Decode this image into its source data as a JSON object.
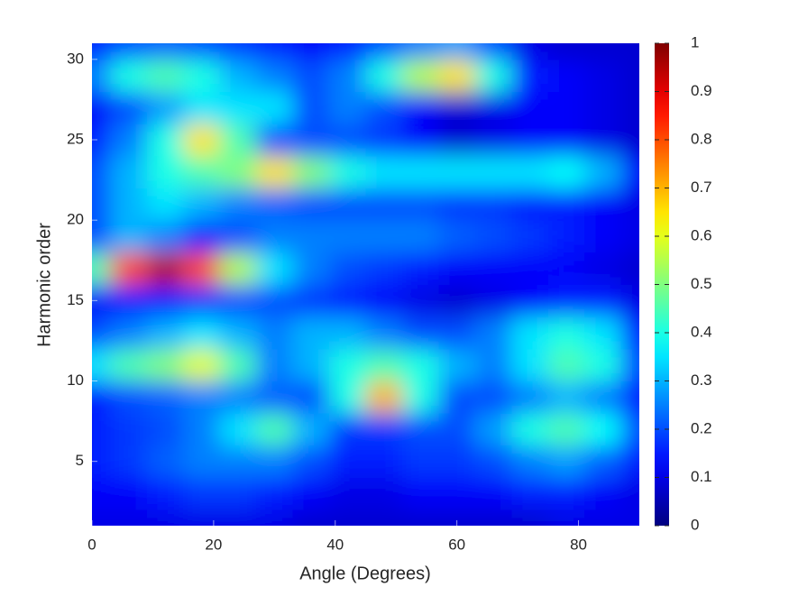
{
  "chart_data": {
    "type": "heatmap",
    "xlabel": "Angle (Degrees)",
    "ylabel": "Harmonic order",
    "colormap": "jet",
    "x": [
      0,
      6,
      12,
      18,
      24,
      30,
      36,
      42,
      48,
      54,
      60,
      66,
      72,
      78,
      84,
      90
    ],
    "y": [
      1,
      3,
      5,
      7,
      9,
      11,
      13,
      15,
      17,
      19,
      21,
      23,
      25,
      27,
      29,
      31
    ],
    "z": [
      [
        0.1,
        0.1,
        0.1,
        0.1,
        0.1,
        0.1,
        0.08,
        0.08,
        0.08,
        0.08,
        0.08,
        0.08,
        0.08,
        0.1,
        0.1,
        0.1
      ],
      [
        0.12,
        0.12,
        0.15,
        0.18,
        0.18,
        0.15,
        0.12,
        0.1,
        0.1,
        0.12,
        0.12,
        0.12,
        0.15,
        0.15,
        0.12,
        0.1
      ],
      [
        0.15,
        0.18,
        0.22,
        0.25,
        0.25,
        0.25,
        0.2,
        0.15,
        0.15,
        0.18,
        0.18,
        0.2,
        0.25,
        0.28,
        0.22,
        0.15
      ],
      [
        0.15,
        0.18,
        0.2,
        0.25,
        0.35,
        0.45,
        0.3,
        0.18,
        0.18,
        0.2,
        0.2,
        0.28,
        0.4,
        0.45,
        0.38,
        0.2
      ],
      [
        0.15,
        0.2,
        0.22,
        0.25,
        0.25,
        0.22,
        0.2,
        0.4,
        0.7,
        0.4,
        0.2,
        0.2,
        0.25,
        0.3,
        0.25,
        0.15
      ],
      [
        0.35,
        0.45,
        0.5,
        0.6,
        0.45,
        0.25,
        0.3,
        0.4,
        0.45,
        0.4,
        0.3,
        0.25,
        0.35,
        0.45,
        0.4,
        0.2
      ],
      [
        0.2,
        0.25,
        0.3,
        0.35,
        0.3,
        0.25,
        0.3,
        0.3,
        0.25,
        0.2,
        0.2,
        0.25,
        0.35,
        0.4,
        0.35,
        0.15
      ],
      [
        0.12,
        0.15,
        0.15,
        0.18,
        0.2,
        0.2,
        0.18,
        0.15,
        0.12,
        0.1,
        0.08,
        0.1,
        0.12,
        0.15,
        0.15,
        0.1
      ],
      [
        0.45,
        0.8,
        0.95,
        0.8,
        0.55,
        0.35,
        0.25,
        0.2,
        0.18,
        0.15,
        0.12,
        0.12,
        0.12,
        0.12,
        0.1,
        0.08
      ],
      [
        0.2,
        0.3,
        0.25,
        0.15,
        0.2,
        0.25,
        0.25,
        0.25,
        0.25,
        0.25,
        0.22,
        0.2,
        0.18,
        0.15,
        0.12,
        0.1
      ],
      [
        0.2,
        0.3,
        0.35,
        0.3,
        0.25,
        0.22,
        0.2,
        0.2,
        0.2,
        0.2,
        0.18,
        0.18,
        0.15,
        0.15,
        0.12,
        0.1
      ],
      [
        0.2,
        0.3,
        0.4,
        0.45,
        0.5,
        0.65,
        0.5,
        0.4,
        0.35,
        0.35,
        0.35,
        0.35,
        0.35,
        0.38,
        0.3,
        0.12
      ],
      [
        0.15,
        0.25,
        0.4,
        0.65,
        0.45,
        0.2,
        0.2,
        0.2,
        0.18,
        0.12,
        0.08,
        0.1,
        0.12,
        0.12,
        0.1,
        0.08
      ],
      [
        0.12,
        0.2,
        0.28,
        0.35,
        0.35,
        0.35,
        0.2,
        0.25,
        0.2,
        0.12,
        0.08,
        0.1,
        0.12,
        0.12,
        0.1,
        0.08
      ],
      [
        0.25,
        0.4,
        0.45,
        0.4,
        0.3,
        0.25,
        0.2,
        0.25,
        0.4,
        0.55,
        0.65,
        0.4,
        0.15,
        0.12,
        0.1,
        0.08
      ],
      [
        0.15,
        0.2,
        0.22,
        0.2,
        0.18,
        0.15,
        0.12,
        0.15,
        0.2,
        0.25,
        0.28,
        0.2,
        0.1,
        0.08,
        0.08,
        0.08
      ]
    ],
    "xlim": [
      0,
      90
    ],
    "xticks": [
      0,
      20,
      40,
      60,
      80
    ],
    "ylim": [
      1,
      31
    ],
    "yticks": [
      5,
      10,
      15,
      20,
      25,
      30
    ],
    "colorbar": {
      "lim": [
        0,
        1
      ],
      "ticks": [
        0,
        0.1,
        0.2,
        0.3,
        0.4,
        0.5,
        0.6,
        0.7,
        0.8,
        0.9,
        1
      ]
    }
  }
}
